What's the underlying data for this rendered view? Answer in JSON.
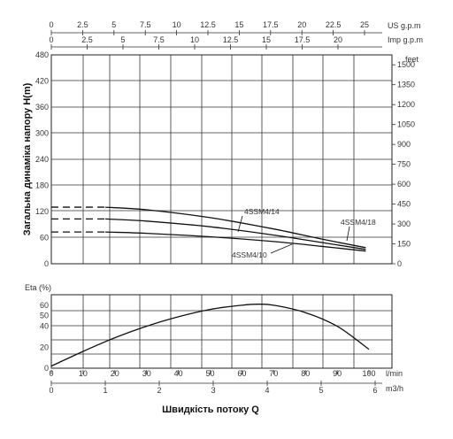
{
  "chart_data": [
    {
      "type": "line",
      "ylabel": "Загальна динаміка напору H(m)",
      "ylim": [
        0,
        480
      ],
      "yticks": [
        0,
        60,
        120,
        180,
        240,
        300,
        360,
        420,
        480
      ],
      "y2unit": "feet",
      "y2lim": [
        0,
        1575
      ],
      "y2ticks": [
        0,
        150,
        300,
        450,
        600,
        750,
        900,
        1050,
        1200,
        1350,
        1500
      ],
      "top_axis_1": {
        "unit": "US g.p.m",
        "ticks": [
          0,
          2.5,
          5,
          7.5,
          10,
          12.5,
          15,
          17.5,
          20,
          22.5,
          25
        ]
      },
      "top_axis_2": {
        "unit": "Imp g.p.m",
        "ticks": [
          0,
          2.5,
          5,
          7.5,
          10,
          12.5,
          15,
          17.5,
          20
        ]
      },
      "xlim": [
        0,
        100
      ],
      "grid": true,
      "series": [
        {
          "name": "4SSM4/18",
          "dashed_x": [
            0,
            17
          ],
          "x": [
            17,
            30,
            50,
            70,
            85,
            99
          ],
          "y": [
            130,
            124,
            106,
            80,
            57,
            37
          ]
        },
        {
          "name": "4SSM4/14",
          "dashed_x": [
            0,
            17
          ],
          "x": [
            17,
            30,
            50,
            70,
            85,
            99
          ],
          "y": [
            103,
            98,
            85,
            66,
            49,
            33
          ]
        },
        {
          "name": "4SSM4/10",
          "dashed_x": [
            0,
            17
          ],
          "x": [
            17,
            30,
            50,
            70,
            85,
            99
          ],
          "y": [
            73,
            70,
            62,
            51,
            40,
            29
          ]
        }
      ]
    },
    {
      "type": "line",
      "ylabel": "Eta (%)",
      "ylim": [
        0,
        70
      ],
      "yticks": [
        0,
        20,
        40,
        50,
        60
      ],
      "xlabel": "Швидкість потоку Q",
      "xlim": [
        0,
        100
      ],
      "xunit": "l/min",
      "xticks": [
        0,
        10,
        20,
        30,
        40,
        50,
        60,
        70,
        80,
        90,
        100
      ],
      "x2unit": "m3/h",
      "x2ticks": [
        0,
        1,
        2,
        3,
        4,
        5,
        6
      ],
      "grid": true,
      "series": [
        {
          "x": [
            0,
            10,
            20,
            30,
            40,
            50,
            60,
            65,
            70,
            80,
            90,
            100
          ],
          "y": [
            2,
            16,
            29,
            40,
            49,
            56,
            60,
            61,
            60,
            53,
            40,
            18
          ]
        }
      ]
    }
  ]
}
